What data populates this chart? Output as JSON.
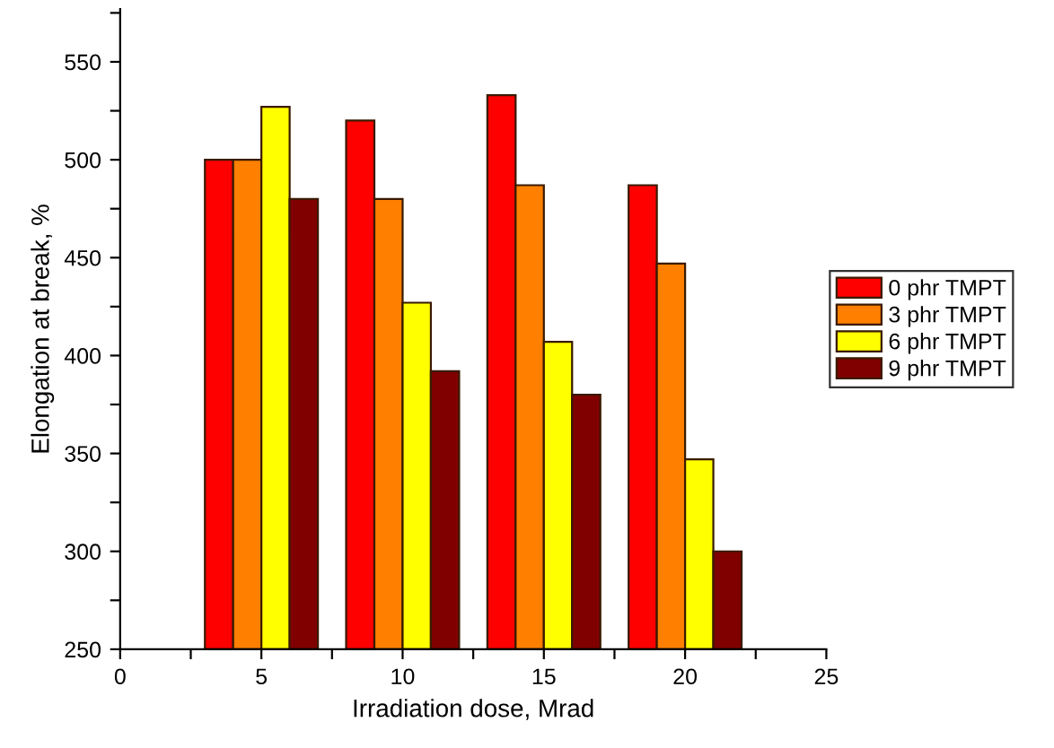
{
  "chart_data": {
    "type": "bar",
    "xlabel": "Irradiation dose, Mrad",
    "ylabel": "Elongation at break, %",
    "x": [
      5,
      10,
      15,
      20
    ],
    "series": [
      {
        "name": "0 phr TMPT",
        "color": "#ff0000",
        "values": [
          500,
          520,
          533,
          487
        ]
      },
      {
        "name": "3 phr TMPT",
        "color": "#ff8000",
        "values": [
          500,
          480,
          487,
          447
        ]
      },
      {
        "name": "6 phr TMPT",
        "color": "#ffff00",
        "values": [
          527,
          427,
          407,
          347
        ]
      },
      {
        "name": "9 phr TMPT",
        "color": "#800000",
        "values": [
          480,
          392,
          380,
          300
        ]
      }
    ],
    "xlim": [
      0,
      25
    ],
    "xticks": [
      0,
      {
        "value": 2.5,
        "label": null
      },
      5,
      {
        "value": 7.5,
        "label": null
      },
      10,
      {
        "value": 12.5,
        "label": null
      },
      15,
      {
        "value": 17.5,
        "label": null
      },
      20,
      {
        "value": 22.5,
        "label": null
      },
      25
    ],
    "ylim": [
      250,
      577
    ],
    "yticks": [
      250,
      {
        "value": 275,
        "label": null
      },
      300,
      {
        "value": 325,
        "label": null
      },
      350,
      {
        "value": 375,
        "label": null
      },
      400,
      {
        "value": 425,
        "label": null
      },
      450,
      {
        "value": 475,
        "label": null
      },
      500,
      {
        "value": 525,
        "label": null
      },
      550,
      {
        "value": 575,
        "label": null
      }
    ],
    "legend": "right",
    "grid": false
  }
}
